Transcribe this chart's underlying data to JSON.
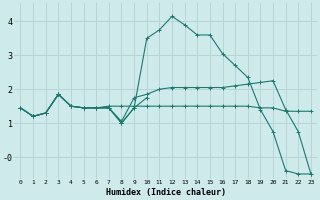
{
  "background_color": "#ceeaea",
  "grid_color": "#b8d4d4",
  "line_color": "#1a7a6e",
  "xlabel": "Humidex (Indice chaleur)",
  "xlim": [
    -0.5,
    23.5
  ],
  "ylim": [
    -0.65,
    4.55
  ],
  "yticks": [
    0,
    1,
    2,
    3,
    4
  ],
  "ytick_labels": [
    "-0",
    "1",
    "2",
    "3",
    "4"
  ],
  "xticks": [
    0,
    1,
    2,
    3,
    4,
    5,
    6,
    7,
    8,
    9,
    10,
    11,
    12,
    13,
    14,
    15,
    16,
    17,
    18,
    19,
    20,
    21,
    22,
    23
  ],
  "line1_x": [
    0,
    1,
    2,
    3,
    4,
    5,
    6,
    7,
    8,
    9,
    10,
    11,
    12,
    13,
    14,
    15,
    16,
    17,
    18,
    19,
    20,
    21,
    22,
    23
  ],
  "line1_y": [
    1.45,
    1.2,
    1.3,
    1.85,
    1.5,
    1.45,
    1.45,
    1.45,
    1.0,
    1.45,
    3.5,
    3.75,
    4.15,
    3.9,
    3.6,
    3.6,
    3.05,
    2.7,
    2.35,
    1.4,
    0.75,
    -0.4,
    -0.5,
    -0.5
  ],
  "line2_x": [
    0,
    1,
    2,
    3,
    4,
    5,
    6,
    7,
    8,
    9,
    10,
    11,
    12,
    13,
    14,
    15,
    16,
    17,
    18,
    19,
    20,
    21,
    22,
    23
  ],
  "line2_y": [
    1.45,
    1.2,
    1.3,
    1.85,
    1.5,
    1.45,
    1.45,
    1.45,
    1.05,
    1.75,
    1.85,
    2.0,
    2.05,
    2.05,
    2.05,
    2.05,
    2.05,
    2.1,
    2.15,
    2.2,
    2.25,
    1.4,
    0.75,
    -0.5
  ],
  "line3_x": [
    0,
    1,
    2,
    3,
    4,
    5,
    6,
    7,
    8,
    9,
    10,
    11,
    12,
    13,
    14,
    15,
    16,
    17,
    18,
    19,
    20,
    21,
    22,
    23
  ],
  "line3_y": [
    1.45,
    1.2,
    1.3,
    1.85,
    1.5,
    1.45,
    1.45,
    1.5,
    1.5,
    1.5,
    1.5,
    1.5,
    1.5,
    1.5,
    1.5,
    1.5,
    1.5,
    1.5,
    1.5,
    1.45,
    1.45,
    1.35,
    1.35,
    1.35
  ],
  "line4_x": [
    0,
    1,
    2,
    3,
    4,
    5,
    6,
    7,
    8,
    9,
    10
  ],
  "line4_y": [
    1.45,
    1.2,
    1.3,
    1.85,
    1.5,
    1.45,
    1.45,
    1.45,
    1.0,
    1.45,
    1.75
  ]
}
